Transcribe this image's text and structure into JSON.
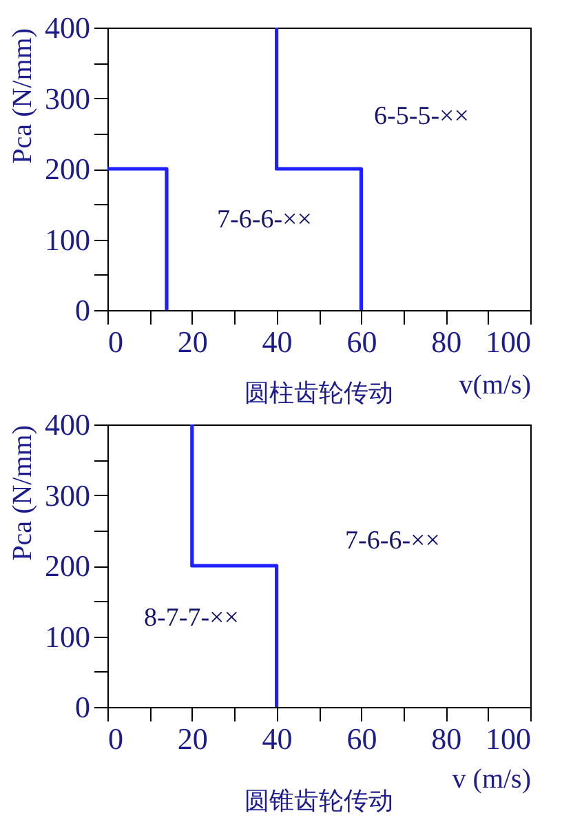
{
  "chart_data": [
    {
      "type": "line",
      "title": "圆柱齿轮传动",
      "xlabel": "v(m/s)",
      "ylabel": "Pca (N/mm)",
      "series": [
        {
          "color": "#1f1fff",
          "x": [
            0,
            14,
            14
          ],
          "values": [
            200,
            200,
            0
          ]
        },
        {
          "color": "#1f1fff",
          "x": [
            40,
            40,
            60,
            60
          ],
          "values": [
            400,
            200,
            200,
            0
          ]
        }
      ],
      "xlim": [
        0,
        100
      ],
      "xticks": [
        0,
        {
          "value": 10,
          "label": null
        },
        20,
        {
          "value": 30,
          "label": null
        },
        40,
        {
          "value": 50,
          "label": null
        },
        60,
        {
          "value": 70,
          "label": null
        },
        80,
        {
          "value": 90,
          "label": null
        },
        100
      ],
      "ylim": [
        0,
        400
      ],
      "yticks": [
        0,
        {
          "value": 50,
          "label": null
        },
        100,
        {
          "value": 150,
          "label": null
        },
        200,
        {
          "value": 250,
          "label": null
        },
        300,
        {
          "value": 350,
          "label": null
        },
        400
      ],
      "annotations": [
        "6-5-5-××",
        "7-6-6-××"
      ],
      "grid": false
    },
    {
      "type": "line",
      "title": "圆锥齿轮传动",
      "xlabel": "v (m/s)",
      "ylabel": "Pca (N/mm)",
      "series": [
        {
          "color": "#1f1fff",
          "x": [
            20,
            20,
            40,
            40
          ],
          "values": [
            400,
            200,
            200,
            0
          ]
        }
      ],
      "xlim": [
        0,
        100
      ],
      "xticks": [
        0,
        {
          "value": 10,
          "label": null
        },
        20,
        {
          "value": 30,
          "label": null
        },
        40,
        {
          "value": 50,
          "label": null
        },
        60,
        {
          "value": 70,
          "label": null
        },
        80,
        {
          "value": 90,
          "label": null
        },
        100
      ],
      "ylim": [
        0,
        400
      ],
      "yticks": [
        0,
        {
          "value": 50,
          "label": null
        },
        100,
        {
          "value": 150,
          "label": null
        },
        200,
        {
          "value": 250,
          "label": null
        },
        300,
        {
          "value": 350,
          "label": null
        },
        400
      ],
      "annotations": [
        "7-6-6-××",
        "8-7-7-××"
      ],
      "grid": false
    }
  ]
}
